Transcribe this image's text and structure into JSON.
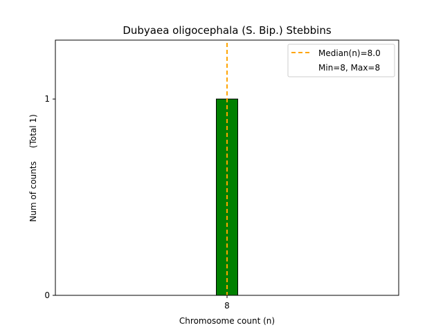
{
  "chart_data": {
    "type": "bar",
    "title": "Dubyaea oligocephala (S. Bip.) Stebbins",
    "xlabel": "Chromosome count (n)",
    "ylabel": "Num of counts     (Total 1)",
    "categories": [
      "8"
    ],
    "x": [
      8
    ],
    "values": [
      1
    ],
    "yticks": [
      "0",
      "1"
    ],
    "ylim": [
      0,
      1.3
    ],
    "bar_color": "#008000",
    "median": 8.0,
    "median_color": "#ffa500",
    "legend": {
      "placement": "top-right",
      "entries": [
        "Median(n)=8.0",
        "Min=8, Max=8"
      ]
    },
    "grid": false
  }
}
